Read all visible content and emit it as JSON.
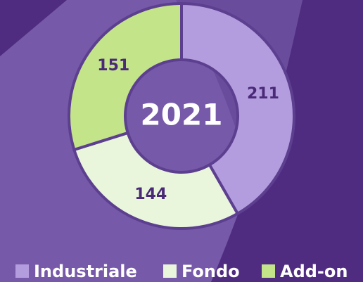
{
  "chart_data": {
    "type": "pie",
    "title": "2021",
    "categories": [
      "Industriale",
      "Fondo",
      "Add-on"
    ],
    "values": [
      211,
      144,
      151
    ],
    "colors": [
      "#b39ddf",
      "#eaf6dc",
      "#c4e48a"
    ],
    "legend": "bottom"
  }
}
